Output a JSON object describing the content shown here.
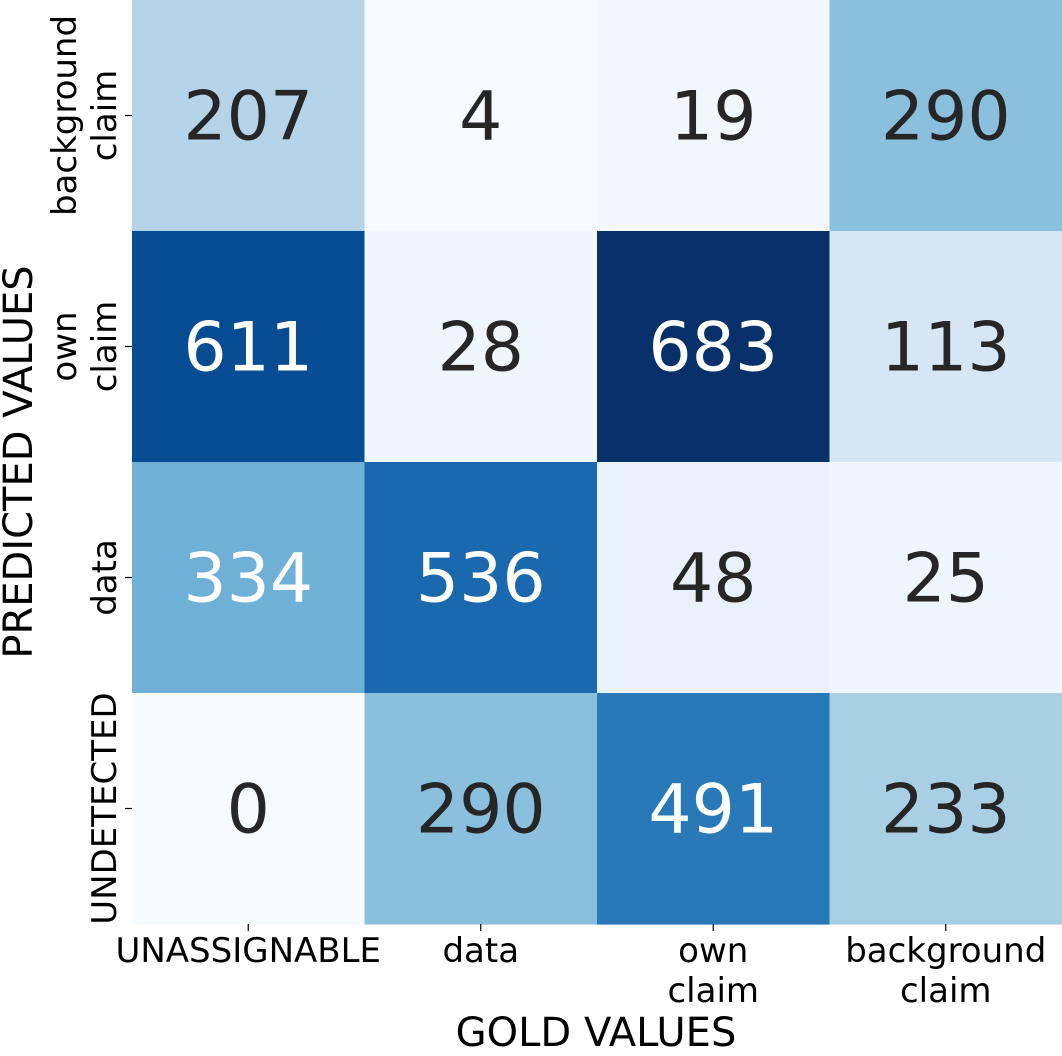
{
  "chart_data": {
    "type": "heatmap",
    "title": "",
    "xlabel": "GOLD VALUES",
    "ylabel": "PREDICTED VALUES",
    "x_categories": [
      [
        "UNASSIGNABLE"
      ],
      [
        "data"
      ],
      [
        "own",
        "claim"
      ],
      [
        "background",
        "claim"
      ]
    ],
    "y_categories": [
      [
        "background",
        "claim"
      ],
      [
        "own",
        "claim"
      ],
      [
        "data"
      ],
      [
        "UNDETECTED"
      ]
    ],
    "values": [
      [
        207,
        4,
        19,
        290
      ],
      [
        611,
        28,
        683,
        113
      ],
      [
        334,
        536,
        48,
        25
      ],
      [
        0,
        290,
        491,
        233
      ]
    ],
    "colormap": "Blues",
    "color_range": [
      0,
      683
    ],
    "colorbar": false,
    "low_color": "#f7fbff",
    "high_color": "#08306b",
    "annotation_light_text": "#ffffff",
    "annotation_dark_text": "#262626"
  }
}
